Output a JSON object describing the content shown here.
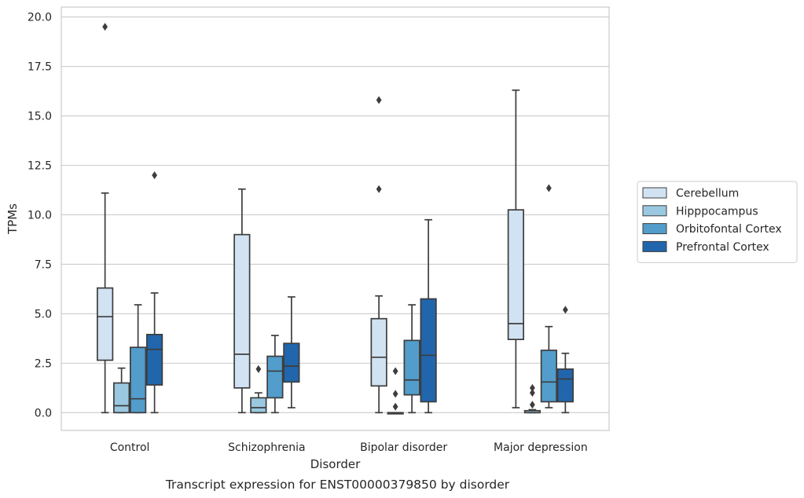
{
  "chart_data": {
    "type": "box",
    "caption": "Transcript expression for ENST00000379850 by disorder",
    "xlabel": "Disorder",
    "ylabel": "TPMs",
    "ylim": [
      -0.9,
      20.5
    ],
    "yticks": [
      "0.0",
      "2.5",
      "5.0",
      "7.5",
      "10.0",
      "12.5",
      "15.0",
      "17.5",
      "20.0"
    ],
    "ytick_values": [
      0,
      2.5,
      5,
      7.5,
      10,
      12.5,
      15,
      17.5,
      20
    ],
    "grid": true,
    "legend_position": "right",
    "categories": [
      "Control",
      "Schizophrenia",
      "Bipolar disorder",
      "Major depression"
    ],
    "series": [
      {
        "name": "Cerebellum",
        "color": "#d1e2f2",
        "boxes": [
          {
            "whisker_low": 0.0,
            "q1": 2.65,
            "median": 4.85,
            "q3": 6.3,
            "whisker_high": 11.1,
            "outliers": [
              19.5
            ]
          },
          {
            "whisker_low": 0.0,
            "q1": 1.25,
            "median": 2.95,
            "q3": 9.0,
            "whisker_high": 11.3,
            "outliers": []
          },
          {
            "whisker_low": 0.0,
            "q1": 1.35,
            "median": 2.8,
            "q3": 4.75,
            "whisker_high": 5.9,
            "outliers": [
              11.3,
              15.8
            ]
          },
          {
            "whisker_low": 0.25,
            "q1": 3.7,
            "median": 4.5,
            "q3": 10.25,
            "whisker_high": 16.3,
            "outliers": []
          }
        ]
      },
      {
        "name": "Hipppocampus",
        "color": "#9ac8e0",
        "boxes": [
          {
            "whisker_low": 0.0,
            "q1": 0.0,
            "median": 0.35,
            "q3": 1.5,
            "whisker_high": 2.25,
            "outliers": []
          },
          {
            "whisker_low": 0.0,
            "q1": 0.0,
            "median": 0.25,
            "q3": 0.75,
            "whisker_high": 1.0,
            "outliers": [
              2.2
            ]
          },
          {
            "whisker_low": 0.0,
            "q1": 0.0,
            "median": 0.0,
            "q3": 0.0,
            "whisker_high": 0.0,
            "outliers": [
              0.3,
              0.95,
              2.1
            ]
          },
          {
            "whisker_low": 0.0,
            "q1": 0.0,
            "median": 0.0,
            "q3": 0.1,
            "whisker_high": 0.15,
            "outliers": [
              0.4,
              1.0,
              1.25
            ]
          }
        ]
      },
      {
        "name": "Orbitofontal Cortex",
        "color": "#529dcb",
        "boxes": [
          {
            "whisker_low": 0.0,
            "q1": 0.0,
            "median": 0.7,
            "q3": 3.3,
            "whisker_high": 5.45,
            "outliers": []
          },
          {
            "whisker_low": 0.0,
            "q1": 0.75,
            "median": 2.1,
            "q3": 2.85,
            "whisker_high": 3.9,
            "outliers": []
          },
          {
            "whisker_low": 0.0,
            "q1": 0.9,
            "median": 1.65,
            "q3": 3.65,
            "whisker_high": 5.45,
            "outliers": []
          },
          {
            "whisker_low": 0.25,
            "q1": 0.55,
            "median": 1.55,
            "q3": 3.15,
            "whisker_high": 4.35,
            "outliers": [
              11.35
            ]
          }
        ]
      },
      {
        "name": "Prefrontal Cortex",
        "color": "#2166ac",
        "boxes": [
          {
            "whisker_low": 0.0,
            "q1": 1.4,
            "median": 3.2,
            "q3": 3.95,
            "whisker_high": 6.05,
            "outliers": [
              12.0
            ]
          },
          {
            "whisker_low": 0.25,
            "q1": 1.55,
            "median": 2.35,
            "q3": 3.5,
            "whisker_high": 5.85,
            "outliers": []
          },
          {
            "whisker_low": 0.0,
            "q1": 0.55,
            "median": 2.9,
            "q3": 5.75,
            "whisker_high": 9.75,
            "outliers": []
          },
          {
            "whisker_low": 0.0,
            "q1": 0.55,
            "median": 1.7,
            "q3": 2.2,
            "whisker_high": 3.0,
            "outliers": [
              5.2
            ]
          }
        ]
      }
    ]
  }
}
